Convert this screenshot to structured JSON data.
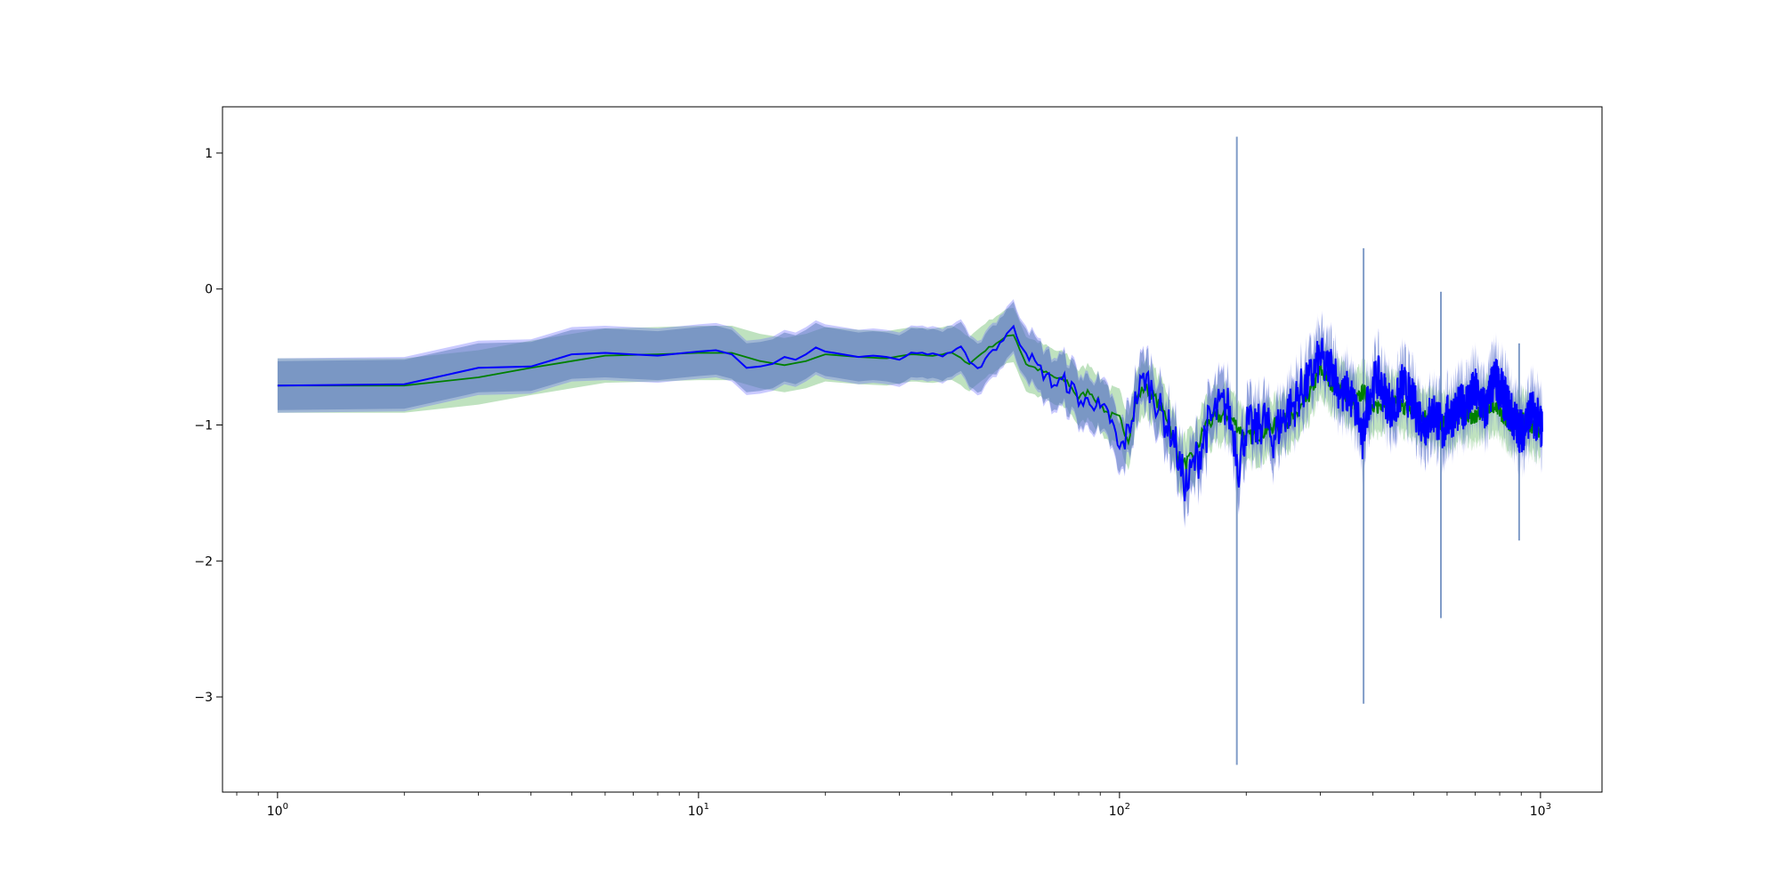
{
  "chart_data": {
    "type": "line",
    "title": "",
    "xlabel": "",
    "ylabel": "",
    "xscale": "log",
    "xlim": [
      0.74,
      1400
    ],
    "ylim": [
      -3.7,
      1.34
    ],
    "grid": false,
    "legend": "none",
    "x_ticks": [
      {
        "base": "10",
        "exp": "0",
        "value": 1
      },
      {
        "base": "10",
        "exp": "1",
        "value": 10
      },
      {
        "base": "10",
        "exp": "2",
        "value": 100
      },
      {
        "base": "10",
        "exp": "3",
        "value": 1000
      }
    ],
    "y_ticks": [
      {
        "label": "1",
        "value": 1
      },
      {
        "label": "0",
        "value": 0
      },
      {
        "label": "−1",
        "value": -1
      },
      {
        "label": "−2",
        "value": -2
      },
      {
        "label": "−3",
        "value": -3
      }
    ],
    "colors": {
      "green_line": "#008000",
      "green_band": "#2ca02c",
      "blue_line": "#0000ff",
      "blue_band": "#6666ff",
      "overlap_band": "#4c72b0"
    },
    "series": [
      {
        "color": "#008000",
        "x": [
          1,
          2,
          3,
          4,
          5,
          6,
          8,
          10,
          12,
          14,
          16,
          18,
          20,
          24,
          28,
          32,
          36,
          40,
          44,
          48,
          52,
          56,
          60,
          65,
          70,
          75,
          80,
          85,
          90,
          95,
          100,
          105,
          110,
          115,
          120,
          130,
          140,
          150,
          160,
          170,
          180,
          190,
          200,
          220,
          240,
          260,
          280,
          300,
          320,
          340,
          360,
          380,
          400,
          430,
          460,
          500,
          550,
          600,
          650,
          700,
          750,
          800,
          850,
          900,
          950,
          1000
        ],
        "values": [
          -0.71,
          -0.71,
          -0.65,
          -0.58,
          -0.53,
          -0.49,
          -0.48,
          -0.47,
          -0.47,
          -0.53,
          -0.56,
          -0.53,
          -0.48,
          -0.5,
          -0.51,
          -0.48,
          -0.49,
          -0.47,
          -0.55,
          -0.45,
          -0.38,
          -0.33,
          -0.55,
          -0.6,
          -0.65,
          -0.68,
          -0.8,
          -0.75,
          -0.85,
          -0.93,
          -0.96,
          -1.1,
          -0.8,
          -0.72,
          -0.78,
          -0.95,
          -1.3,
          -1.25,
          -1.0,
          -0.95,
          -0.92,
          -1.0,
          -1.1,
          -1.05,
          -0.98,
          -0.95,
          -0.8,
          -0.6,
          -0.7,
          -0.75,
          -0.85,
          -0.75,
          -0.9,
          -0.8,
          -0.85,
          -0.9,
          -0.95,
          -1.0,
          -0.9,
          -0.95,
          -0.85,
          -0.9,
          -1.0,
          -0.95,
          -1.0,
          -1.05
        ],
        "band_width": 0.2
      },
      {
        "color": "#0000ff",
        "x": [
          1,
          2,
          3,
          4,
          5,
          6,
          8,
          10,
          11,
          12,
          13,
          14,
          15,
          16,
          17,
          18,
          19,
          20,
          21,
          22,
          24,
          26,
          28,
          30,
          32,
          34,
          36,
          38,
          40,
          42,
          44,
          46,
          48,
          50,
          52,
          54,
          56,
          58,
          60,
          63,
          66,
          70,
          74,
          78,
          82,
          86,
          90,
          95,
          100,
          105,
          110,
          115,
          120,
          125,
          130,
          135,
          140,
          145,
          150,
          155,
          160,
          170,
          180,
          188,
          192,
          200,
          210,
          220,
          230,
          240,
          250,
          260,
          270,
          280,
          290,
          300,
          310,
          320,
          330,
          340,
          350,
          360,
          370,
          378,
          385,
          395,
          410,
          430,
          450,
          470,
          500,
          530,
          560,
          585,
          600,
          630,
          660,
          700,
          740,
          780,
          820,
          860,
          900,
          950,
          1000,
          1010
        ],
        "values": [
          -0.71,
          -0.7,
          -0.58,
          -0.57,
          -0.48,
          -0.47,
          -0.49,
          -0.46,
          -0.45,
          -0.48,
          -0.58,
          -0.57,
          -0.55,
          -0.5,
          -0.52,
          -0.48,
          -0.43,
          -0.46,
          -0.47,
          -0.48,
          -0.5,
          -0.49,
          -0.5,
          -0.52,
          -0.47,
          -0.47,
          -0.48,
          -0.49,
          -0.46,
          -0.42,
          -0.55,
          -0.6,
          -0.5,
          -0.45,
          -0.4,
          -0.32,
          -0.3,
          -0.38,
          -0.45,
          -0.55,
          -0.62,
          -0.7,
          -0.68,
          -0.75,
          -0.85,
          -0.8,
          -0.9,
          -0.95,
          -1.2,
          -1.05,
          -0.78,
          -0.65,
          -0.75,
          -0.9,
          -1.0,
          -1.1,
          -1.35,
          -1.45,
          -1.3,
          -1.2,
          -1.05,
          -0.9,
          -0.85,
          -1.1,
          -1.3,
          -1.0,
          -1.05,
          -0.95,
          -1.1,
          -1.0,
          -0.9,
          -0.85,
          -0.75,
          -0.7,
          -0.6,
          -0.5,
          -0.6,
          -0.55,
          -0.7,
          -0.8,
          -0.75,
          -0.85,
          -0.95,
          -1.15,
          -0.9,
          -0.75,
          -0.65,
          -0.8,
          -0.9,
          -0.7,
          -0.85,
          -1.0,
          -0.9,
          -1.05,
          -0.95,
          -0.9,
          -0.85,
          -0.75,
          -0.9,
          -0.65,
          -0.8,
          -0.95,
          -1.05,
          -0.9,
          -1.0,
          -1.05
        ],
        "band_width": 0.2
      }
    ],
    "spikes": [
      {
        "x": 190,
        "low": -3.5,
        "high": 1.12
      },
      {
        "x": 380,
        "low": -3.05,
        "high": 0.3
      },
      {
        "x": 580,
        "low": -2.42,
        "high": -0.02
      },
      {
        "x": 890,
        "low": -1.85,
        "high": -0.4
      }
    ]
  }
}
